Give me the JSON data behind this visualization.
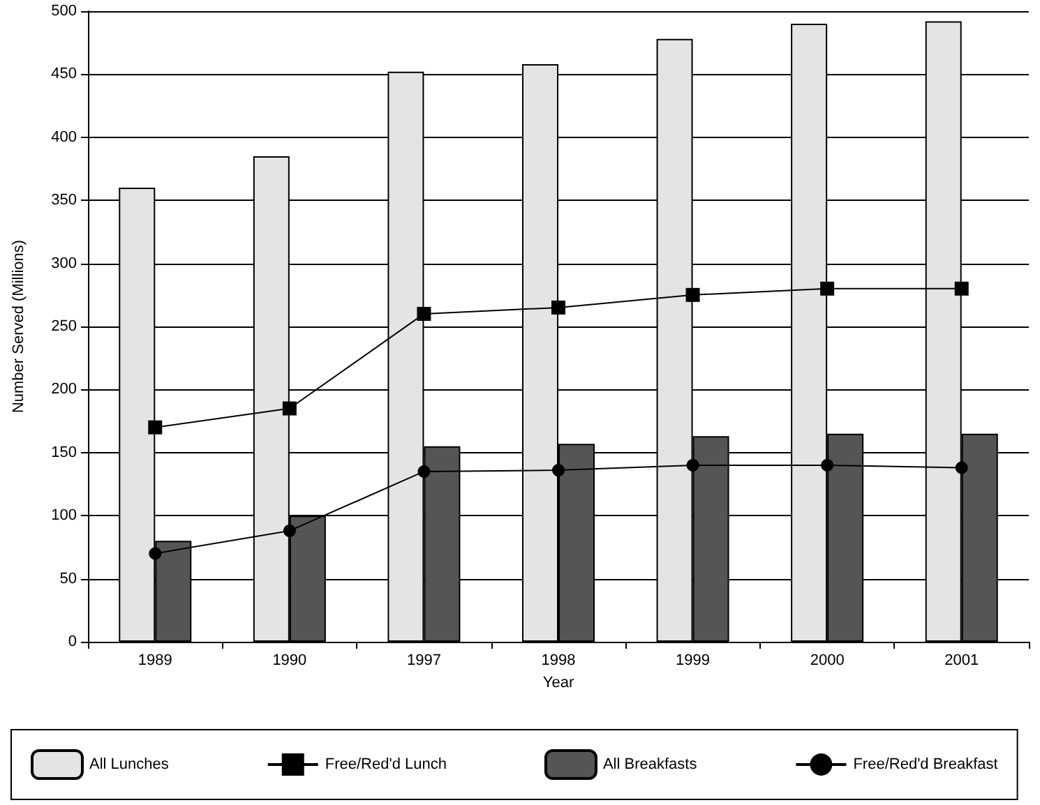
{
  "chart_data": {
    "type": "bar",
    "xlabel": "Year",
    "ylabel": "Number Served (Millions)",
    "categories": [
      "1989",
      "1990",
      "1997",
      "1998",
      "1999",
      "2000",
      "2001"
    ],
    "series": [
      {
        "name": "All Lunches",
        "color": "#e4e4e4",
        "values": [
          360,
          385,
          452,
          458,
          478,
          490,
          492
        ]
      },
      {
        "name": "Free/Red'd Lunch",
        "type": "line",
        "marker": "square",
        "color": "#000000",
        "values": [
          170,
          185,
          260,
          265,
          275,
          280,
          280
        ]
      },
      {
        "name": "All Breakfasts",
        "color": "#555555",
        "values": [
          80,
          100,
          155,
          157,
          163,
          165,
          165
        ]
      },
      {
        "name": "Free/Red'd Breakfast",
        "type": "line",
        "marker": "circle",
        "color": "#000000",
        "values": [
          70,
          88,
          135,
          136,
          140,
          140,
          138
        ]
      }
    ],
    "ylim": [
      0,
      500
    ],
    "yticks": [
      0,
      50,
      100,
      150,
      200,
      250,
      300,
      350,
      400,
      450,
      500
    ],
    "grid": "y",
    "legend": "bottom",
    "line_style": "solid"
  }
}
